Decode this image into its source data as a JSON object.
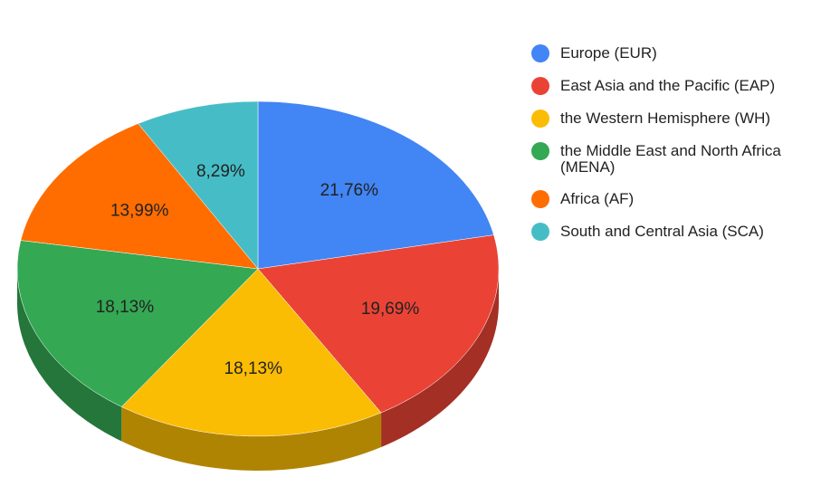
{
  "chart_data": {
    "type": "pie3d",
    "categories": [
      "Europe (EUR)",
      "East Asia and the Pacific (EAP)",
      "the Western Hemisphere (WH)",
      "the Middle East and North Africa (MENA)",
      "Africa (AF)",
      "South and Central Asia (SCA)"
    ],
    "values": [
      21.76,
      19.69,
      18.13,
      18.13,
      13.99,
      8.29
    ],
    "value_labels": [
      "21,76%",
      "19,69%",
      "18,13%",
      "18,13%",
      "13,99%",
      "8,29%"
    ],
    "colors": [
      "#4285f4",
      "#ea4335",
      "#fbbc04",
      "#34a853",
      "#ff6d01",
      "#46bdc6"
    ],
    "legend": "right"
  }
}
